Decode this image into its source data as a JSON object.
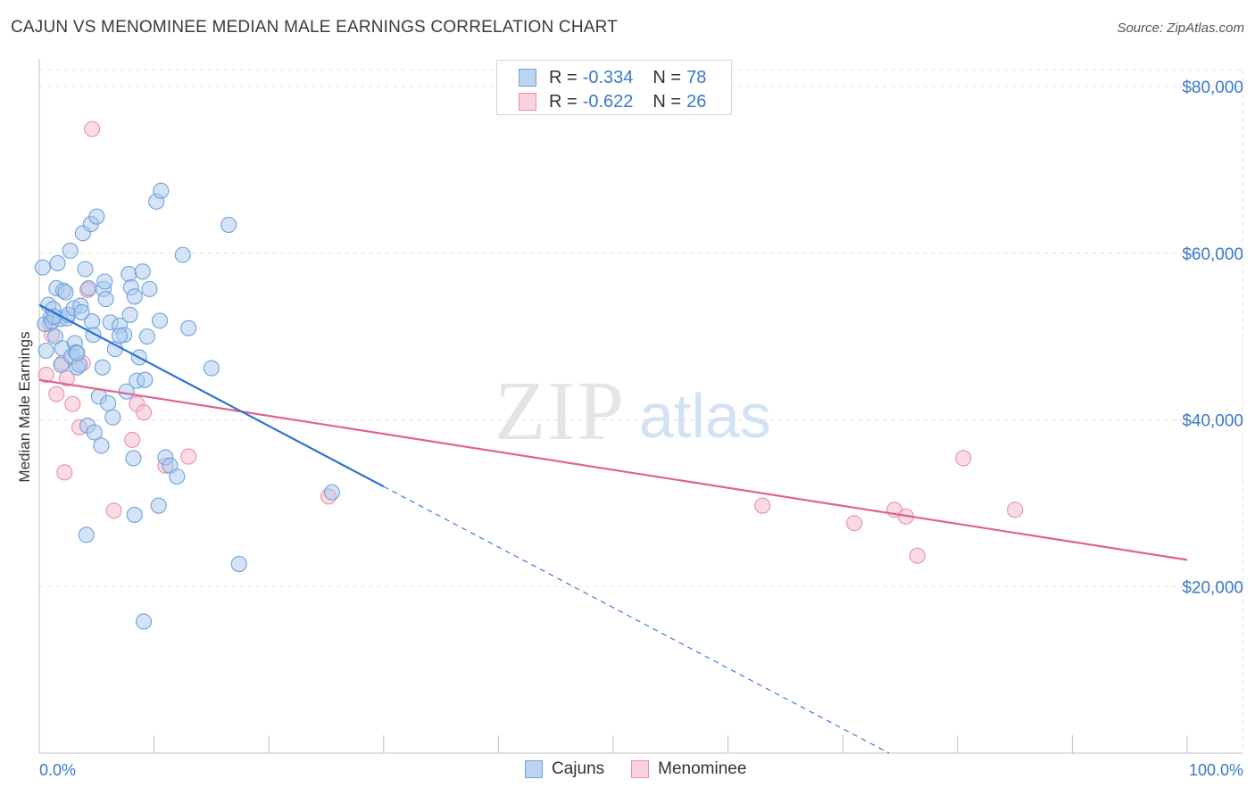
{
  "header": {
    "title": "CAJUN VS MENOMINEE MEDIAN MALE EARNINGS CORRELATION CHART",
    "source": "Source: ZipAtlas.com"
  },
  "watermark": {
    "part1": "ZIP",
    "part2": "atlas"
  },
  "colors": {
    "cajun_fill": "#a9c9ee",
    "cajun_stroke": "#6fa1dc",
    "cajun_line": "#2b72d2",
    "menominee_fill": "#f6bdd0",
    "menominee_stroke": "#e890ad",
    "menominee_line": "#e0628f",
    "axis_label": "#3a78c9",
    "grid": "#e3e3e3"
  },
  "legend": {
    "cajun": {
      "r_label": "R =",
      "r_value": "-0.334",
      "n_label": "N =",
      "n_value": "78"
    },
    "menominee": {
      "r_label": "R =",
      "r_value": "-0.622",
      "n_label": "N =",
      "n_value": "26"
    }
  },
  "bottom_legend": {
    "cajun": "Cajuns",
    "menominee": "Menominee"
  },
  "chart_data": {
    "type": "scatter",
    "title": "CAJUN VS MENOMINEE MEDIAN MALE EARNINGS CORRELATION CHART",
    "xlabel": "",
    "ylabel": "Median Male Earnings",
    "xlim": [
      0,
      100
    ],
    "ylim": [
      0,
      82000
    ],
    "x_tick_labels": {
      "min": "0.0%",
      "max": "100.0%"
    },
    "x_minor_ticks": [
      10,
      20,
      30,
      40,
      50,
      60,
      70,
      80,
      90
    ],
    "y_ticks": [
      20000,
      40000,
      60000,
      80000
    ],
    "y_tick_labels": [
      "$20,000",
      "$40,000",
      "$60,000",
      "$80,000"
    ],
    "grid": true,
    "series": [
      {
        "name": "Cajuns",
        "r": -0.334,
        "n": 78,
        "trend": {
          "x1": 0,
          "y1": 53800,
          "x2": 30,
          "y2": 32000,
          "dash_to_x": 75,
          "dash_to_y": -1000
        },
        "points": [
          [
            0.3,
            58300
          ],
          [
            0.5,
            51500
          ],
          [
            0.6,
            48300
          ],
          [
            0.8,
            53800
          ],
          [
            1.0,
            52300
          ],
          [
            1.1,
            51800
          ],
          [
            1.2,
            53300
          ],
          [
            1.4,
            50000
          ],
          [
            1.5,
            55800
          ],
          [
            1.6,
            58800
          ],
          [
            1.8,
            52100
          ],
          [
            1.9,
            46600
          ],
          [
            2.0,
            48600
          ],
          [
            2.1,
            55500
          ],
          [
            2.3,
            55300
          ],
          [
            2.4,
            52200
          ],
          [
            2.5,
            52600
          ],
          [
            2.7,
            60300
          ],
          [
            2.8,
            47600
          ],
          [
            3.0,
            53400
          ],
          [
            3.1,
            49200
          ],
          [
            3.2,
            48100
          ],
          [
            3.3,
            46300
          ],
          [
            3.5,
            46600
          ],
          [
            3.6,
            53700
          ],
          [
            3.7,
            52900
          ],
          [
            3.8,
            62400
          ],
          [
            4.0,
            58100
          ],
          [
            4.2,
            39300
          ],
          [
            4.3,
            55800
          ],
          [
            4.5,
            63500
          ],
          [
            4.6,
            51800
          ],
          [
            4.7,
            50200
          ],
          [
            4.8,
            38500
          ],
          [
            5.0,
            64400
          ],
          [
            5.2,
            42800
          ],
          [
            5.4,
            36900
          ],
          [
            5.5,
            46300
          ],
          [
            5.6,
            55700
          ],
          [
            5.7,
            56600
          ],
          [
            5.8,
            54500
          ],
          [
            6.0,
            42000
          ],
          [
            6.2,
            51700
          ],
          [
            6.4,
            40300
          ],
          [
            6.6,
            48500
          ],
          [
            7.0,
            51300
          ],
          [
            7.4,
            50200
          ],
          [
            7.6,
            43400
          ],
          [
            7.8,
            57500
          ],
          [
            7.9,
            52600
          ],
          [
            8.0,
            55900
          ],
          [
            8.2,
            35400
          ],
          [
            8.3,
            54800
          ],
          [
            8.5,
            44700
          ],
          [
            8.7,
            47500
          ],
          [
            9.0,
            57800
          ],
          [
            9.2,
            44800
          ],
          [
            9.4,
            50000
          ],
          [
            9.6,
            55700
          ],
          [
            10.2,
            66200
          ],
          [
            10.5,
            51900
          ],
          [
            10.6,
            67500
          ],
          [
            11.0,
            35500
          ],
          [
            11.4,
            34500
          ],
          [
            12.0,
            33200
          ],
          [
            12.5,
            59800
          ],
          [
            13.0,
            51000
          ],
          [
            15.0,
            46200
          ],
          [
            16.5,
            63400
          ],
          [
            17.4,
            22700
          ],
          [
            10.4,
            29700
          ],
          [
            8.3,
            28600
          ],
          [
            4.1,
            26200
          ],
          [
            9.1,
            15800
          ],
          [
            25.5,
            31300
          ],
          [
            7.0,
            50100
          ],
          [
            3.3,
            48000
          ],
          [
            1.3,
            52400
          ]
        ]
      },
      {
        "name": "Menominee",
        "r": -0.622,
        "n": 26,
        "trend": {
          "x1": 0,
          "y1": 44800,
          "x2": 100,
          "y2": 23200
        },
        "points": [
          [
            0.6,
            45400
          ],
          [
            0.9,
            51500
          ],
          [
            1.1,
            50200
          ],
          [
            1.5,
            43100
          ],
          [
            2.0,
            46800
          ],
          [
            2.2,
            33700
          ],
          [
            2.4,
            45000
          ],
          [
            2.9,
            41900
          ],
          [
            3.5,
            39100
          ],
          [
            3.8,
            46800
          ],
          [
            4.2,
            55600
          ],
          [
            4.6,
            74900
          ],
          [
            6.5,
            29100
          ],
          [
            8.1,
            37600
          ],
          [
            8.5,
            41900
          ],
          [
            9.1,
            40900
          ],
          [
            11.0,
            34500
          ],
          [
            13.0,
            35600
          ],
          [
            25.2,
            30800
          ],
          [
            63.0,
            29700
          ],
          [
            71.0,
            27600
          ],
          [
            74.5,
            29200
          ],
          [
            75.5,
            28400
          ],
          [
            76.5,
            23700
          ],
          [
            80.5,
            35400
          ],
          [
            85.0,
            29200
          ]
        ]
      }
    ]
  }
}
